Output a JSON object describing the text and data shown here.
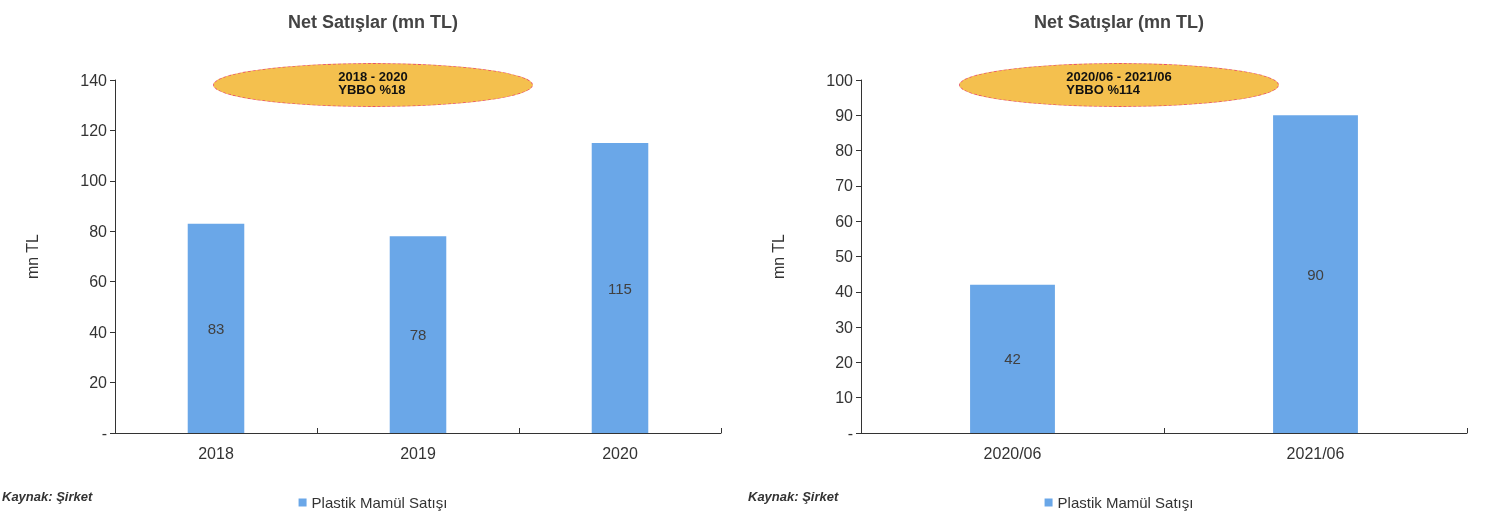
{
  "chart_data": [
    {
      "type": "bar",
      "title": "Net Satışlar (mn TL)",
      "ylabel": "mn TL",
      "categories": [
        "2018",
        "2019",
        "2020"
      ],
      "series": [
        {
          "name": "Plastik Mamül Satışı",
          "color": "#6aa7e8",
          "values": [
            83,
            78,
            115
          ]
        }
      ],
      "ylim": [
        0,
        140
      ],
      "yticks": [
        {
          "value": 0,
          "label": "-"
        },
        20,
        40,
        60,
        80,
        100,
        120,
        140
      ],
      "data_labels": true,
      "grid": false,
      "legend": "bottom",
      "annotations": [
        "2018 - 2020\nYBBO %18",
        "Kaynak: Şirket"
      ]
    },
    {
      "type": "bar",
      "title": "Net Satışlar (mn TL)",
      "ylabel": "mn TL",
      "categories": [
        "2020/06",
        "2021/06"
      ],
      "series": [
        {
          "name": "Plastik Mamül Satışı",
          "color": "#6aa7e8",
          "values": [
            42,
            90
          ]
        }
      ],
      "ylim": [
        0,
        100
      ],
      "yticks": [
        {
          "value": 0,
          "label": "-"
        },
        10,
        20,
        30,
        40,
        50,
        60,
        70,
        80,
        90,
        100
      ],
      "data_labels": true,
      "grid": false,
      "legend": "bottom",
      "annotations": [
        "2020/06 - 2021/06\nYBBO %114",
        "Kaynak: Şirket"
      ]
    }
  ]
}
